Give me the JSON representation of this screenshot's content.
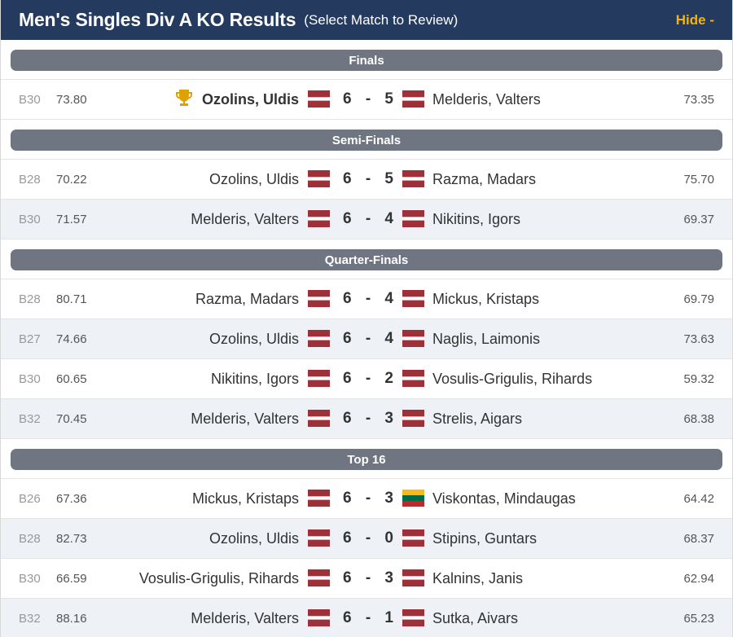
{
  "header": {
    "title": "Men's Singles Div A KO Results",
    "subtitle": "(Select Match to Review)",
    "hide_label": "Hide -"
  },
  "colors": {
    "header_bg": "#243a5e",
    "accent": "#f5b400",
    "round_bar_bg": "#6f7581",
    "latvia_red": "#9e3039",
    "lithuania_yellow": "#fdb913",
    "lithuania_green": "#006a44",
    "lithuania_red": "#c1272d"
  },
  "rounds": [
    {
      "name": "Finals",
      "matches": [
        {
          "board": "B30",
          "avg_left": "73.80",
          "left": "Ozolins, Uldis",
          "left_flag": "latvia",
          "score_left": "6",
          "score_right": "5",
          "right": "Melderis, Valters",
          "right_flag": "latvia",
          "avg_right": "73.35",
          "winner_icon": "trophy-icon"
        }
      ]
    },
    {
      "name": "Semi-Finals",
      "matches": [
        {
          "board": "B28",
          "avg_left": "70.22",
          "left": "Ozolins, Uldis",
          "left_flag": "latvia",
          "score_left": "6",
          "score_right": "5",
          "right": "Razma, Madars",
          "right_flag": "latvia",
          "avg_right": "75.70"
        },
        {
          "board": "B30",
          "avg_left": "71.57",
          "left": "Melderis, Valters",
          "left_flag": "latvia",
          "score_left": "6",
          "score_right": "4",
          "right": "Nikitins, Igors",
          "right_flag": "latvia",
          "avg_right": "69.37"
        }
      ]
    },
    {
      "name": "Quarter-Finals",
      "matches": [
        {
          "board": "B28",
          "avg_left": "80.71",
          "left": "Razma, Madars",
          "left_flag": "latvia",
          "score_left": "6",
          "score_right": "4",
          "right": "Mickus, Kristaps",
          "right_flag": "latvia",
          "avg_right": "69.79"
        },
        {
          "board": "B27",
          "avg_left": "74.66",
          "left": "Ozolins, Uldis",
          "left_flag": "latvia",
          "score_left": "6",
          "score_right": "4",
          "right": "Naglis, Laimonis",
          "right_flag": "latvia",
          "avg_right": "73.63"
        },
        {
          "board": "B30",
          "avg_left": "60.65",
          "left": "Nikitins, Igors",
          "left_flag": "latvia",
          "score_left": "6",
          "score_right": "2",
          "right": "Vosulis-Grigulis, Rihards",
          "right_flag": "latvia",
          "avg_right": "59.32"
        },
        {
          "board": "B32",
          "avg_left": "70.45",
          "left": "Melderis, Valters",
          "left_flag": "latvia",
          "score_left": "6",
          "score_right": "3",
          "right": "Strelis, Aigars",
          "right_flag": "latvia",
          "avg_right": "68.38"
        }
      ]
    },
    {
      "name": "Top 16",
      "matches": [
        {
          "board": "B26",
          "avg_left": "67.36",
          "left": "Mickus, Kristaps",
          "left_flag": "latvia",
          "score_left": "6",
          "score_right": "3",
          "right": "Viskontas, Mindaugas",
          "right_flag": "lithuania",
          "avg_right": "64.42"
        },
        {
          "board": "B28",
          "avg_left": "82.73",
          "left": "Ozolins, Uldis",
          "left_flag": "latvia",
          "score_left": "6",
          "score_right": "0",
          "right": "Stipins, Guntars",
          "right_flag": "latvia",
          "avg_right": "68.37"
        },
        {
          "board": "B30",
          "avg_left": "66.59",
          "left": "Vosulis-Grigulis, Rihards",
          "left_flag": "latvia",
          "score_left": "6",
          "score_right": "3",
          "right": "Kalnins, Janis",
          "right_flag": "latvia",
          "avg_right": "62.94"
        },
        {
          "board": "B32",
          "avg_left": "88.16",
          "left": "Melderis, Valters",
          "left_flag": "latvia",
          "score_left": "6",
          "score_right": "1",
          "right": "Sutka, Aivars",
          "right_flag": "latvia",
          "avg_right": "65.23"
        }
      ]
    }
  ]
}
